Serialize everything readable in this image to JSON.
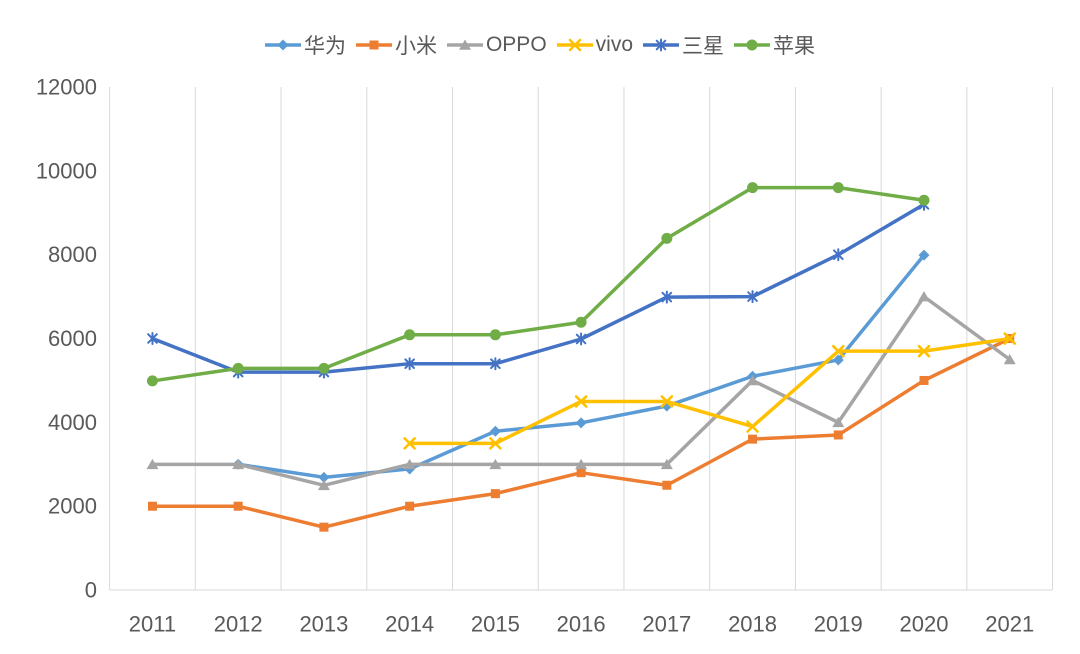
{
  "chart_data": {
    "type": "line",
    "title": "",
    "categories": [
      "2011",
      "2012",
      "2013",
      "2014",
      "2015",
      "2016",
      "2017",
      "2018",
      "2019",
      "2020",
      "2021"
    ],
    "y_ticks": [
      0,
      2000,
      4000,
      6000,
      8000,
      10000,
      12000
    ],
    "ylim": [
      0,
      12000
    ],
    "grid": "vertical-only",
    "gridline_color": "#D9D9D9",
    "axis_text_color": "#595959",
    "legend_position": "top",
    "series": [
      {
        "name": "华为",
        "slug": "huawei",
        "color": "#5B9BD5",
        "marker": "diamond",
        "values": [
          null,
          2999,
          2688,
          2888,
          3788,
          3988,
          4388,
          5099,
          5488,
          7988,
          null
        ]
      },
      {
        "name": "小米",
        "slug": "xiaomi",
        "color": "#ED7D31",
        "marker": "square",
        "values": [
          1999,
          1999,
          1499,
          1999,
          2299,
          2799,
          2499,
          3599,
          3699,
          4999,
          5999
        ]
      },
      {
        "name": "OPPO",
        "slug": "oppo",
        "color": "#A5A5A5",
        "marker": "triangle",
        "values": [
          2998,
          2998,
          2498,
          2998,
          2998,
          2998,
          2998,
          4999,
          3999,
          6999,
          5499
        ]
      },
      {
        "name": "vivo",
        "slug": "vivo",
        "color": "#FFC000",
        "marker": "x",
        "values": [
          null,
          null,
          null,
          3498,
          3498,
          4498,
          4498,
          3898,
          5698,
          5698,
          5998
        ]
      },
      {
        "name": "三星",
        "slug": "samsung",
        "color": "#4472C4",
        "marker": "asterisk",
        "values": [
          5999,
          5199,
          5199,
          5399,
          5399,
          5988,
          6988,
          6999,
          7999,
          9199,
          null
        ]
      },
      {
        "name": "苹果",
        "slug": "apple",
        "color": "#70AD47",
        "marker": "circle",
        "values": [
          4988,
          5288,
          5288,
          6088,
          6088,
          6388,
          8388,
          9599,
          9599,
          9299,
          null
        ]
      }
    ]
  }
}
